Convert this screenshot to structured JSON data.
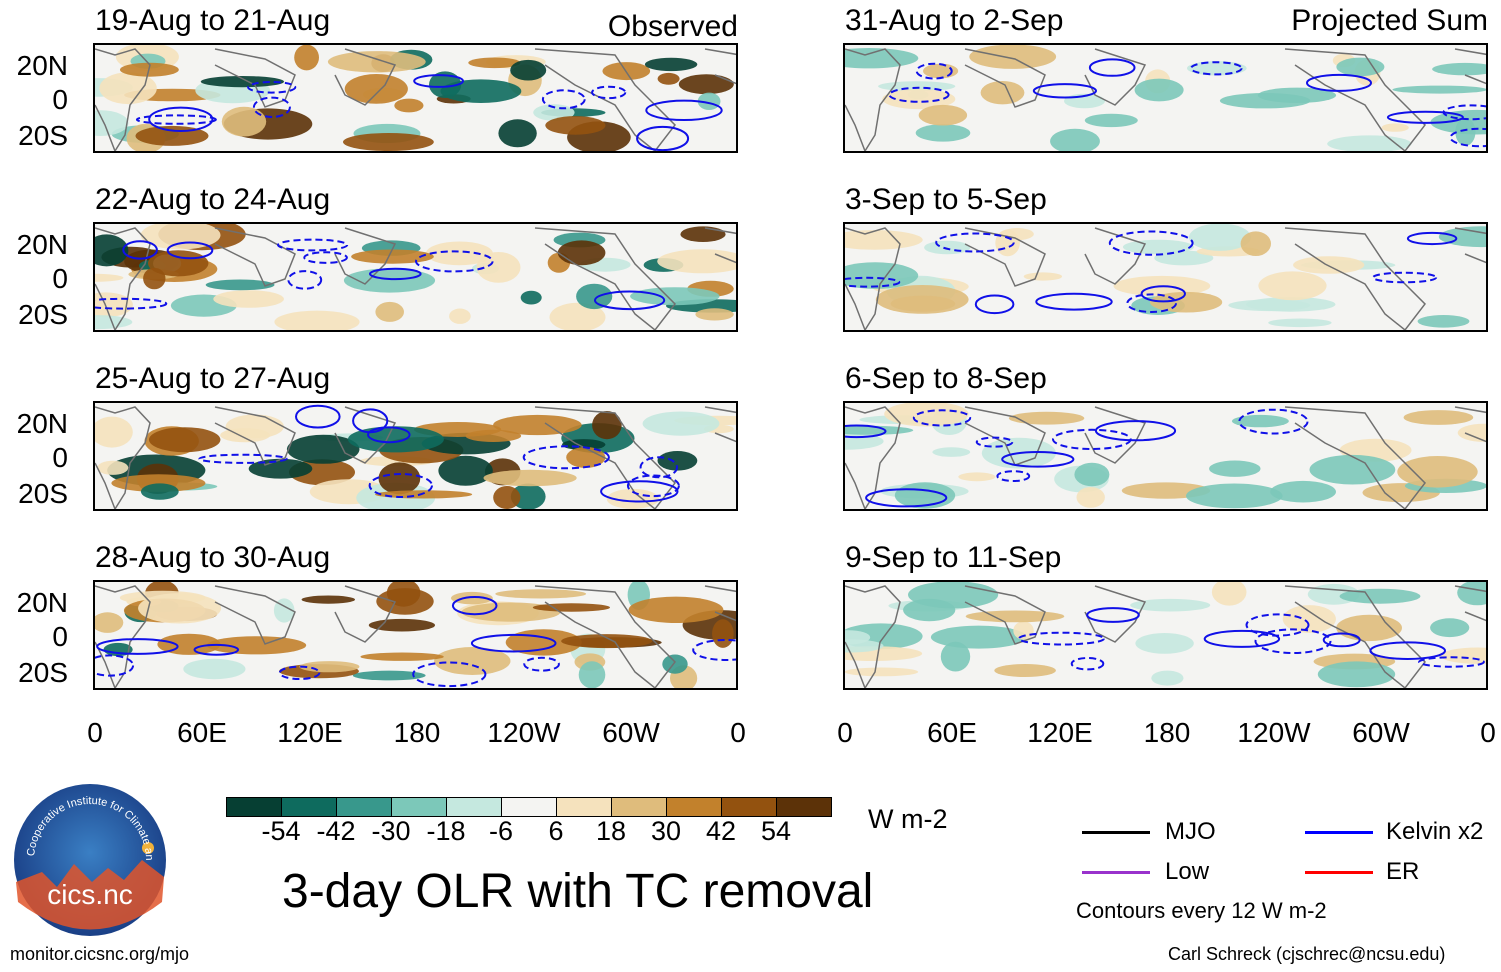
{
  "left_column": {
    "label": "Observed",
    "panels": [
      "19-Aug to 21-Aug",
      "22-Aug to 24-Aug",
      "25-Aug to 27-Aug",
      "28-Aug to 30-Aug"
    ]
  },
  "right_column": {
    "label": "Projected Sum",
    "panels": [
      "31-Aug to 2-Sep",
      "3-Sep to 5-Sep",
      "6-Sep to 8-Sep",
      "9-Sep to 11-Sep"
    ]
  },
  "lat_labels": [
    "20N",
    "0",
    "20S"
  ],
  "lon_labels": [
    "0",
    "60E",
    "120E",
    "180",
    "120W",
    "60W",
    "0"
  ],
  "colorbar": {
    "ticks": [
      "-54",
      "-42",
      "-30",
      "-18",
      "-6",
      "6",
      "18",
      "30",
      "42",
      "54"
    ],
    "colors": [
      "#063f33",
      "#0e6b5e",
      "#38988c",
      "#7cc8b9",
      "#c5e8df",
      "#f4f4f2",
      "#f5e2bd",
      "#dfbc7c",
      "#c2812c",
      "#93520f",
      "#5c3208"
    ],
    "units": "W m-2"
  },
  "title": "3-day OLR with TC removal",
  "legend": {
    "items": [
      {
        "label": "MJO",
        "color": "#000000"
      },
      {
        "label": "Kelvin x2",
        "color": "#0000ff"
      },
      {
        "label": "Low",
        "color": "#9932cc"
      },
      {
        "label": "ER",
        "color": "#ff0000"
      }
    ],
    "note": "Contours every 12 W m-2"
  },
  "logo_text": "cics.nc",
  "logo_ring_text": "Cooperative Institute for Climate and Satellites",
  "footer_left": "monitor.cicsnc.org/mjo",
  "footer_right": "Carl Schreck (cjschrec@ncsu.edu)"
}
